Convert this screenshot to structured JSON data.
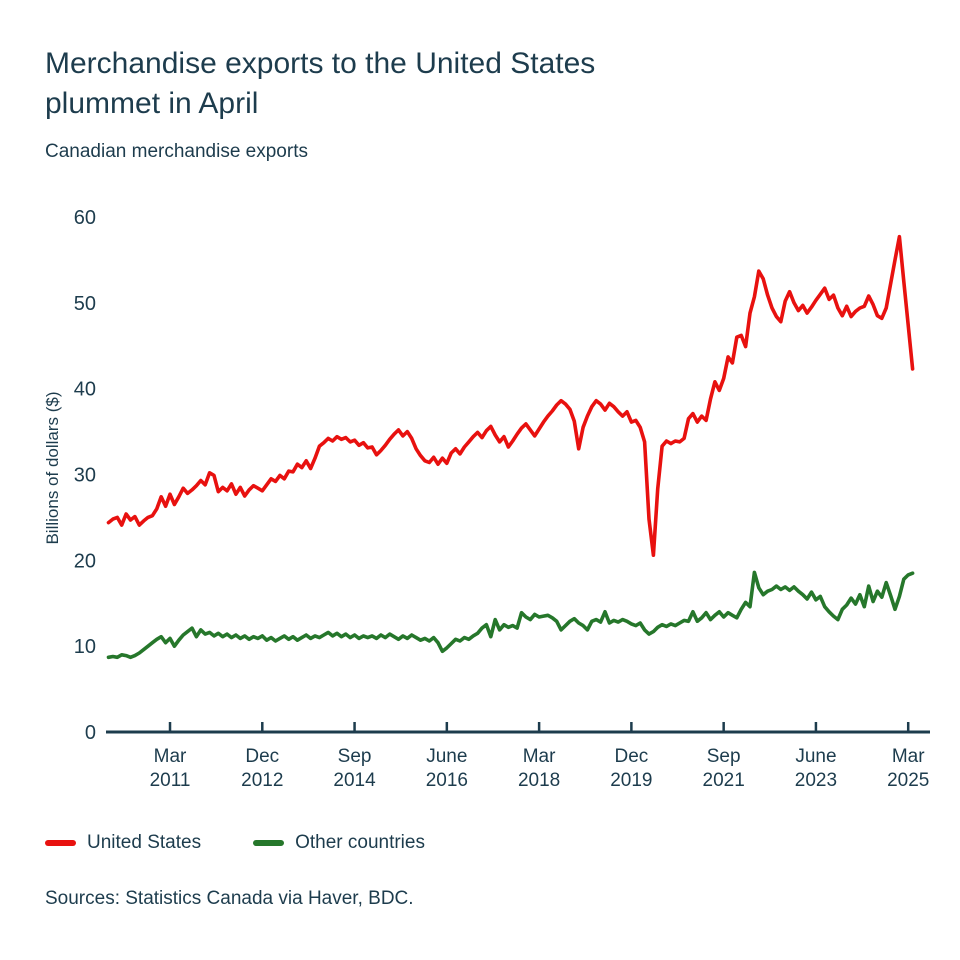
{
  "header": {
    "title": "Merchandise exports to the United States plummet in April",
    "subtitle": "Canadian merchandise exports"
  },
  "footer": {
    "sources": "Sources: Statistics Canada via Haver, BDC."
  },
  "colors": {
    "background": "#ffffff",
    "text": "#1d3c4d",
    "axis": "#1d3c4d",
    "us_line": "#e8110f",
    "other_line": "#26772b"
  },
  "chart_data": {
    "type": "line",
    "title": "Merchandise exports to the United States plummet in April",
    "subtitle": "Canadian merchandise exports",
    "xlabel": "",
    "ylabel": "Billions of dollars ($)",
    "ylim": [
      0,
      60
    ],
    "y_ticks": [
      0,
      10,
      20,
      30,
      40,
      50,
      60
    ],
    "grid": false,
    "legend_position": "bottom",
    "x_start": "2010-01",
    "x_end": "2025-04",
    "x_frequency": "monthly",
    "x_ticks": [
      {
        "line1": "Mar",
        "line2": "2011",
        "month_index": 14
      },
      {
        "line1": "Dec",
        "line2": "2012",
        "month_index": 35
      },
      {
        "line1": "Sep",
        "line2": "2014",
        "month_index": 56
      },
      {
        "line1": "June",
        "line2": "2016",
        "month_index": 77
      },
      {
        "line1": "Mar",
        "line2": "2018",
        "month_index": 98
      },
      {
        "line1": "Dec",
        "line2": "2019",
        "month_index": 119
      },
      {
        "line1": "Sep",
        "line2": "2021",
        "month_index": 140
      },
      {
        "line1": "June",
        "line2": "2023",
        "month_index": 161
      },
      {
        "line1": "Mar",
        "line2": "2025",
        "month_index": 182
      }
    ],
    "series": [
      {
        "name": "United States",
        "color": "#e8110f",
        "values": [
          24.4,
          24.8,
          25.0,
          24.1,
          25.4,
          24.7,
          25.1,
          24.1,
          24.6,
          25.0,
          25.2,
          26.0,
          27.4,
          26.3,
          27.7,
          26.5,
          27.4,
          28.4,
          27.8,
          28.2,
          28.7,
          29.3,
          28.8,
          30.2,
          29.9,
          28.0,
          28.5,
          28.1,
          28.9,
          27.7,
          28.5,
          27.5,
          28.2,
          28.7,
          28.4,
          28.1,
          28.8,
          29.5,
          29.2,
          29.9,
          29.5,
          30.4,
          30.3,
          31.2,
          30.8,
          31.6,
          30.7,
          31.9,
          33.3,
          33.7,
          34.2,
          33.9,
          34.4,
          34.1,
          34.3,
          33.8,
          34.0,
          33.4,
          33.7,
          33.1,
          33.2,
          32.3,
          32.8,
          33.4,
          34.1,
          34.7,
          35.2,
          34.5,
          35.0,
          34.2,
          33.0,
          32.2,
          31.6,
          31.4,
          32.0,
          31.2,
          31.9,
          31.3,
          32.5,
          33.0,
          32.4,
          33.2,
          33.8,
          34.4,
          34.9,
          34.3,
          35.1,
          35.6,
          34.6,
          33.8,
          34.4,
          33.2,
          33.9,
          34.7,
          35.4,
          35.9,
          35.2,
          34.5,
          35.3,
          36.1,
          36.8,
          37.4,
          38.1,
          38.6,
          38.2,
          37.6,
          36.2,
          33.0,
          35.5,
          36.8,
          37.9,
          38.6,
          38.2,
          37.5,
          38.3,
          37.9,
          37.3,
          36.8,
          37.3,
          36.1,
          36.3,
          35.5,
          33.8,
          24.8,
          20.6,
          28.3,
          33.3,
          33.9,
          33.6,
          33.9,
          33.8,
          34.2,
          36.5,
          37.1,
          36.1,
          36.8,
          36.3,
          38.8,
          40.8,
          39.8,
          41.2,
          43.7,
          43.0,
          46.0,
          46.2,
          44.9,
          48.8,
          50.7,
          53.7,
          52.8,
          50.9,
          49.4,
          48.4,
          47.8,
          50.2,
          51.3,
          50.0,
          49.1,
          49.7,
          48.8,
          49.5,
          50.3,
          51.0,
          51.7,
          50.4,
          50.9,
          49.4,
          48.5,
          49.6,
          48.4,
          49.0,
          49.4,
          49.6,
          50.8,
          49.8,
          48.5,
          48.2,
          49.4,
          52.2,
          55.0,
          57.7,
          52.5,
          47.4,
          42.3
        ]
      },
      {
        "name": "Other countries",
        "color": "#26772b",
        "values": [
          8.7,
          8.8,
          8.7,
          9.0,
          8.9,
          8.7,
          8.9,
          9.2,
          9.6,
          10.0,
          10.4,
          10.8,
          11.1,
          10.4,
          10.9,
          10.0,
          10.7,
          11.3,
          11.7,
          12.1,
          11.1,
          11.9,
          11.4,
          11.6,
          11.2,
          11.5,
          11.1,
          11.4,
          11.0,
          11.3,
          10.9,
          11.2,
          10.8,
          11.1,
          10.9,
          11.2,
          10.7,
          11.0,
          10.6,
          10.9,
          11.2,
          10.8,
          11.1,
          10.7,
          11.0,
          11.3,
          10.9,
          11.2,
          11.0,
          11.3,
          11.6,
          11.2,
          11.5,
          11.1,
          11.4,
          11.0,
          11.3,
          10.9,
          11.2,
          11.0,
          11.2,
          10.9,
          11.3,
          11.0,
          11.4,
          11.1,
          10.8,
          11.2,
          10.9,
          11.3,
          11.0,
          10.7,
          10.9,
          10.6,
          11.0,
          10.4,
          9.4,
          9.8,
          10.3,
          10.8,
          10.6,
          11.0,
          10.8,
          11.2,
          11.5,
          12.1,
          12.5,
          11.1,
          13.1,
          11.9,
          12.5,
          12.2,
          12.4,
          12.1,
          13.9,
          13.4,
          13.1,
          13.7,
          13.4,
          13.5,
          13.6,
          13.3,
          12.9,
          11.9,
          12.4,
          12.9,
          13.2,
          12.7,
          12.4,
          11.9,
          12.9,
          13.1,
          12.8,
          14.0,
          12.7,
          13.0,
          12.8,
          13.1,
          12.9,
          12.6,
          12.4,
          12.7,
          11.9,
          11.4,
          11.7,
          12.2,
          12.5,
          12.3,
          12.6,
          12.4,
          12.7,
          13.0,
          12.9,
          14.0,
          12.9,
          13.3,
          13.9,
          13.1,
          13.6,
          14.0,
          13.4,
          13.9,
          13.6,
          13.3,
          14.3,
          15.1,
          14.6,
          18.6,
          16.8,
          16.0,
          16.4,
          16.6,
          17.0,
          16.6,
          16.9,
          16.5,
          16.9,
          16.4,
          16.0,
          15.5,
          16.3,
          15.4,
          15.8,
          14.6,
          14.0,
          13.5,
          13.1,
          14.3,
          14.8,
          15.6,
          14.9,
          16.0,
          14.6,
          17.0,
          15.2,
          16.4,
          15.7,
          17.4,
          15.9,
          14.3,
          15.8,
          17.8,
          18.3,
          18.5
        ]
      }
    ]
  }
}
